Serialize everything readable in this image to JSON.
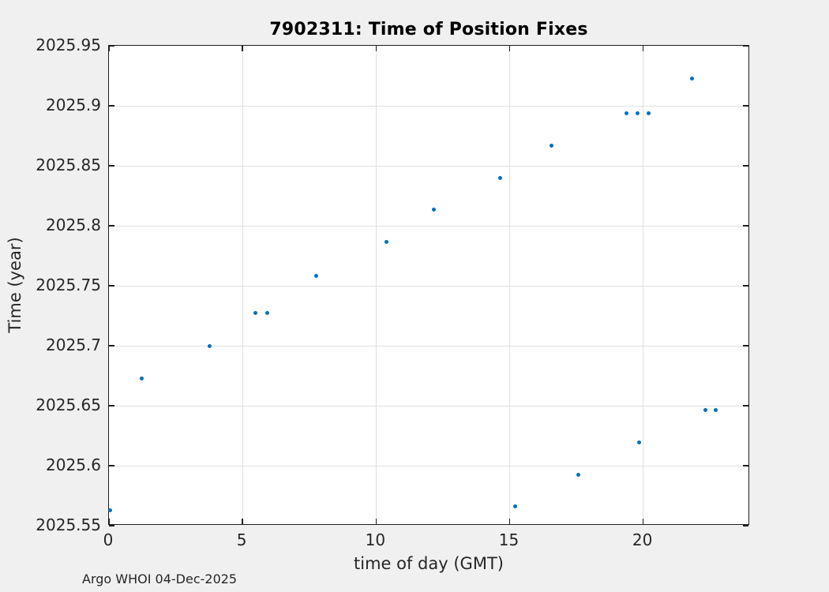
{
  "chart": {
    "title": "7902311: Time of Position Fixes",
    "xlabel": "time of day (GMT)",
    "ylabel": "Time (year)",
    "annotation": "Argo WHOI 04-Dec-2025"
  },
  "colors": {
    "figure_background": "#f0f0f0",
    "plot_background": "#ffffff",
    "axis": "#1f1f1f",
    "grid": "#e0e0e0",
    "tick_label": "#262626",
    "marker": "#0072BD"
  },
  "chart_data": {
    "type": "scatter",
    "title": "7902311: Time of Position Fixes",
    "xlabel": "time of day (GMT)",
    "ylabel": "Time (year)",
    "annotation": "Argo WHOI 04-Dec-2025",
    "xlim": [
      0,
      24
    ],
    "ylim": [
      2025.55,
      2025.95
    ],
    "xticks": [
      0,
      5,
      10,
      15,
      20
    ],
    "xtick_labels": [
      "0",
      "5",
      "10",
      "15",
      "20"
    ],
    "yticks": [
      2025.55,
      2025.6,
      2025.65,
      2025.7,
      2025.75,
      2025.8,
      2025.85,
      2025.9,
      2025.95
    ],
    "ytick_labels": [
      "2025.55",
      "2025.6",
      "2025.65",
      "2025.7",
      "2025.75",
      "2025.8",
      "2025.85",
      "2025.9",
      "2025.95"
    ],
    "grid": true,
    "legend": null,
    "marker_color": "#0072BD",
    "marker_size_px": 5,
    "points": [
      {
        "x": 0.05,
        "y": 2025.563
      },
      {
        "x": 15.22,
        "y": 2025.566
      },
      {
        "x": 17.56,
        "y": 2025.5925
      },
      {
        "x": 19.86,
        "y": 2025.6195
      },
      {
        "x": 22.32,
        "y": 2025.6465
      },
      {
        "x": 22.7,
        "y": 2025.6465
      },
      {
        "x": 1.24,
        "y": 2025.6725
      },
      {
        "x": 3.78,
        "y": 2025.6995
      },
      {
        "x": 5.47,
        "y": 2025.727
      },
      {
        "x": 5.94,
        "y": 2025.727
      },
      {
        "x": 7.77,
        "y": 2025.7585
      },
      {
        "x": 10.38,
        "y": 2025.7865
      },
      {
        "x": 12.15,
        "y": 2025.8135
      },
      {
        "x": 14.66,
        "y": 2025.84
      },
      {
        "x": 16.58,
        "y": 2025.867
      },
      {
        "x": 19.36,
        "y": 2025.894
      },
      {
        "x": 19.78,
        "y": 2025.894
      },
      {
        "x": 20.19,
        "y": 2025.894
      },
      {
        "x": 21.84,
        "y": 2025.9225
      }
    ]
  }
}
